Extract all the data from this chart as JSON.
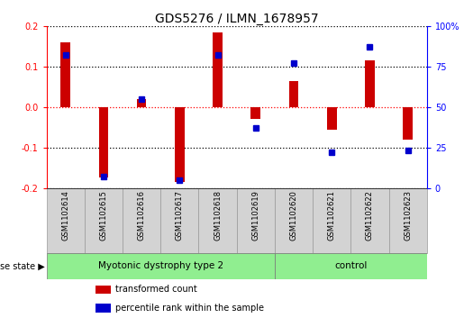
{
  "title": "GDS5276 / ILMN_1678957",
  "samples": [
    "GSM1102614",
    "GSM1102615",
    "GSM1102616",
    "GSM1102617",
    "GSM1102618",
    "GSM1102619",
    "GSM1102620",
    "GSM1102621",
    "GSM1102622",
    "GSM1102623"
  ],
  "transformed_count": [
    0.16,
    -0.175,
    0.02,
    -0.185,
    0.185,
    -0.03,
    0.065,
    -0.055,
    0.115,
    -0.08
  ],
  "percentile_rank": [
    82,
    7,
    55,
    5,
    82,
    37,
    77,
    22,
    87,
    23
  ],
  "disease_groups": [
    {
      "label": "Myotonic dystrophy type 2",
      "start": 0,
      "end": 6,
      "color": "#90EE90"
    },
    {
      "label": "control",
      "start": 6,
      "end": 10,
      "color": "#90EE90"
    }
  ],
  "ylim_left": [
    -0.2,
    0.2
  ],
  "ylim_right": [
    0,
    100
  ],
  "yticks_left": [
    -0.2,
    -0.1,
    0.0,
    0.1,
    0.2
  ],
  "yticks_right": [
    0,
    25,
    50,
    75,
    100
  ],
  "bar_color": "#CC0000",
  "dot_color": "#0000CC",
  "bar_width": 0.25,
  "dot_size": 4,
  "legend_bar_label": "transformed count",
  "legend_dot_label": "percentile rank within the sample",
  "disease_state_label": "disease state",
  "label_fontsize": 7,
  "tick_fontsize": 7,
  "title_fontsize": 10,
  "sample_fontsize": 6,
  "disease_fontsize": 7.5,
  "legend_fontsize": 7
}
